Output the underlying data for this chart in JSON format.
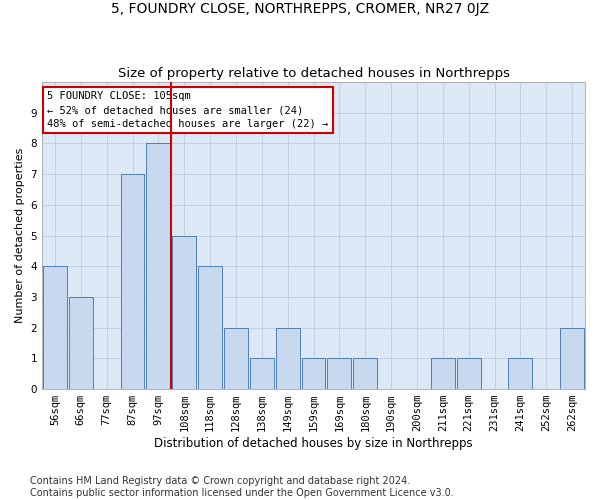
{
  "title": "5, FOUNDRY CLOSE, NORTHREPPS, CROMER, NR27 0JZ",
  "subtitle": "Size of property relative to detached houses in Northrepps",
  "xlabel": "Distribution of detached houses by size in Northrepps",
  "ylabel": "Number of detached properties",
  "categories": [
    "56sqm",
    "66sqm",
    "77sqm",
    "87sqm",
    "97sqm",
    "108sqm",
    "118sqm",
    "128sqm",
    "138sqm",
    "149sqm",
    "159sqm",
    "169sqm",
    "180sqm",
    "190sqm",
    "200sqm",
    "211sqm",
    "221sqm",
    "231sqm",
    "241sqm",
    "252sqm",
    "262sqm"
  ],
  "values": [
    4,
    3,
    0,
    7,
    8,
    5,
    4,
    2,
    1,
    2,
    1,
    1,
    1,
    0,
    0,
    1,
    1,
    0,
    1,
    0,
    2
  ],
  "bar_color": "#c8d8ee",
  "bar_edge_color": "#5080b0",
  "highlight_line_color": "#cc0000",
  "highlight_line_index": 4.5,
  "annotation_text": "5 FOUNDRY CLOSE: 105sqm\n← 52% of detached houses are smaller (24)\n48% of semi-detached houses are larger (22) →",
  "annotation_box_color": "#ffffff",
  "annotation_box_edge_color": "#cc0000",
  "ylim": [
    0,
    10
  ],
  "yticks": [
    0,
    1,
    2,
    3,
    4,
    5,
    6,
    7,
    8,
    9
  ],
  "grid_color": "#b8c8d8",
  "background_color": "#dce8f5",
  "footer_text": "Contains HM Land Registry data © Crown copyright and database right 2024.\nContains public sector information licensed under the Open Government Licence v3.0.",
  "title_fontsize": 10,
  "subtitle_fontsize": 9.5,
  "xlabel_fontsize": 8.5,
  "ylabel_fontsize": 8,
  "tick_fontsize": 7.5,
  "footer_fontsize": 7,
  "annotation_fontsize": 7.5
}
